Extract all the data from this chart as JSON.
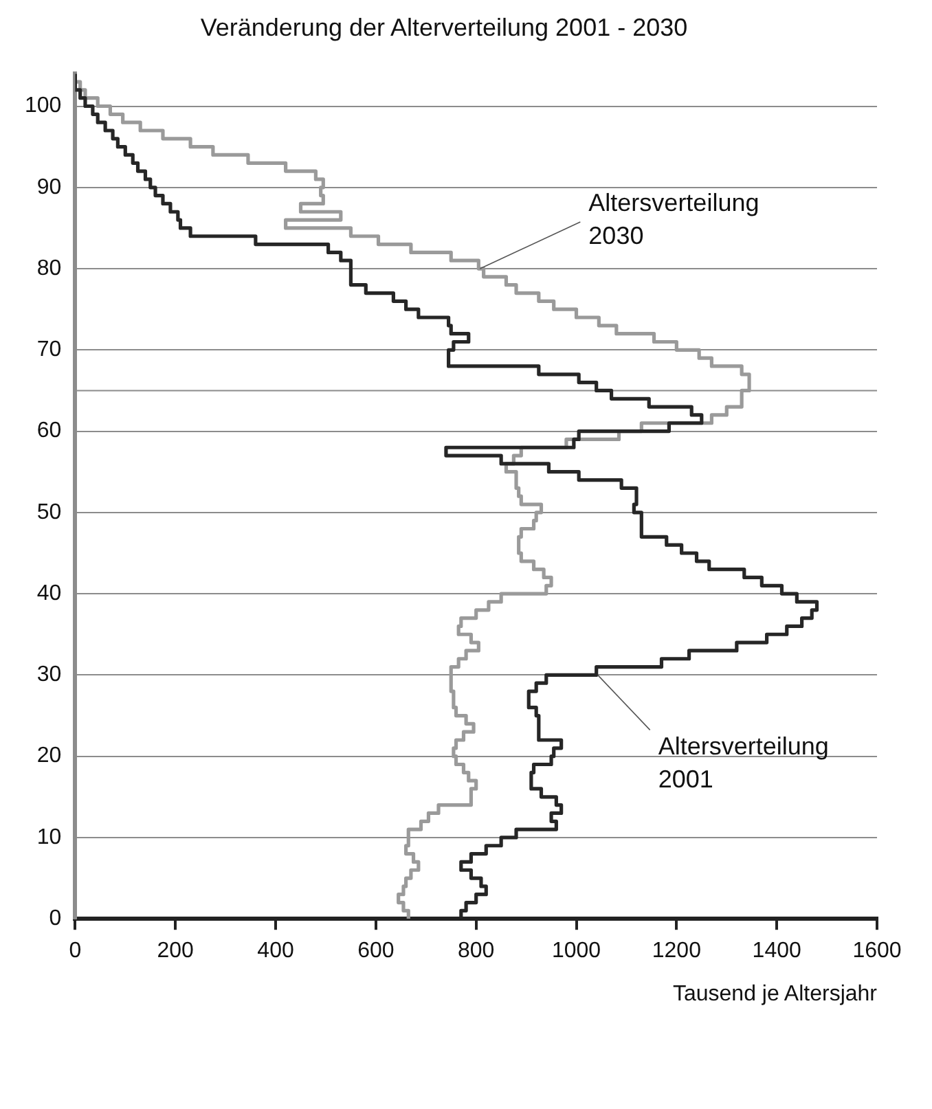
{
  "chart_data": {
    "type": "step",
    "orientation": "horizontal",
    "title": "Veränderung der Alterverteilung 2001 - 2030",
    "xlabel": "Tausend je Altersjahr",
    "x": [
      0,
      1,
      2,
      3,
      4,
      5,
      6,
      7,
      8,
      9,
      10,
      11,
      12,
      13,
      14,
      15,
      16,
      17,
      18,
      19,
      20,
      21,
      22,
      23,
      24,
      25,
      26,
      27,
      28,
      29,
      30,
      31,
      32,
      33,
      34,
      35,
      36,
      37,
      38,
      39,
      40,
      41,
      42,
      43,
      44,
      45,
      46,
      47,
      48,
      49,
      50,
      51,
      52,
      53,
      54,
      55,
      56,
      57,
      58,
      59,
      60,
      61,
      62,
      63,
      64,
      65,
      66,
      67,
      68,
      69,
      70,
      71,
      72,
      73,
      74,
      75,
      76,
      77,
      78,
      79,
      80,
      81,
      82,
      83,
      84,
      85,
      86,
      87,
      88,
      89,
      90,
      91,
      92,
      93,
      94,
      95,
      96,
      97,
      98,
      99,
      100,
      101,
      102,
      103,
      104
    ],
    "series": [
      {
        "name": "Altersverteilung 2001",
        "color": "#262626",
        "values": [
          770,
          780,
          800,
          820,
          810,
          790,
          770,
          790,
          820,
          850,
          880,
          960,
          950,
          970,
          960,
          930,
          910,
          910,
          915,
          950,
          955,
          970,
          925,
          925,
          925,
          920,
          905,
          905,
          920,
          940,
          1040,
          1170,
          1225,
          1320,
          1380,
          1420,
          1450,
          1470,
          1480,
          1440,
          1410,
          1370,
          1335,
          1265,
          1240,
          1210,
          1180,
          1130,
          1130,
          1130,
          1115,
          1120,
          1120,
          1090,
          1005,
          945,
          850,
          740,
          995,
          1005,
          1185,
          1250,
          1230,
          1145,
          1070,
          1040,
          1005,
          925,
          745,
          745,
          755,
          785,
          750,
          745,
          685,
          660,
          635,
          580,
          550,
          550,
          550,
          530,
          505,
          360,
          230,
          210,
          205,
          190,
          175,
          160,
          150,
          140,
          125,
          115,
          100,
          85,
          75,
          60,
          45,
          35,
          20,
          10,
          0,
          0,
          0
        ]
      },
      {
        "name": "Altersverteilung 2030",
        "color": "#9a9a9a",
        "values": [
          665,
          655,
          645,
          655,
          660,
          670,
          685,
          675,
          660,
          665,
          665,
          690,
          705,
          725,
          790,
          790,
          800,
          785,
          775,
          760,
          755,
          760,
          775,
          795,
          780,
          760,
          755,
          755,
          750,
          750,
          750,
          765,
          780,
          805,
          790,
          765,
          770,
          800,
          825,
          850,
          940,
          950,
          935,
          915,
          890,
          885,
          885,
          890,
          915,
          920,
          930,
          890,
          885,
          880,
          880,
          860,
          875,
          890,
          980,
          1085,
          1130,
          1270,
          1300,
          1330,
          1330,
          1345,
          1345,
          1330,
          1270,
          1245,
          1200,
          1155,
          1080,
          1045,
          1000,
          955,
          925,
          880,
          860,
          815,
          805,
          750,
          670,
          605,
          550,
          420,
          530,
          450,
          495,
          490,
          495,
          480,
          420,
          345,
          275,
          230,
          175,
          130,
          95,
          70,
          45,
          20,
          10,
          0,
          0
        ]
      }
    ],
    "xlim": [
      0,
      1600
    ],
    "xticks": [
      0,
      200,
      400,
      600,
      800,
      1000,
      1200,
      1400,
      1600
    ],
    "ylim": [
      0,
      104
    ],
    "yticks": [
      0,
      10,
      20,
      30,
      40,
      50,
      60,
      70,
      80,
      90,
      100
    ],
    "grid": "y",
    "legend": false,
    "marker": "none",
    "line_style": "solid",
    "ref_lines": [
      {
        "axis": "y",
        "value": 65
      }
    ]
  }
}
